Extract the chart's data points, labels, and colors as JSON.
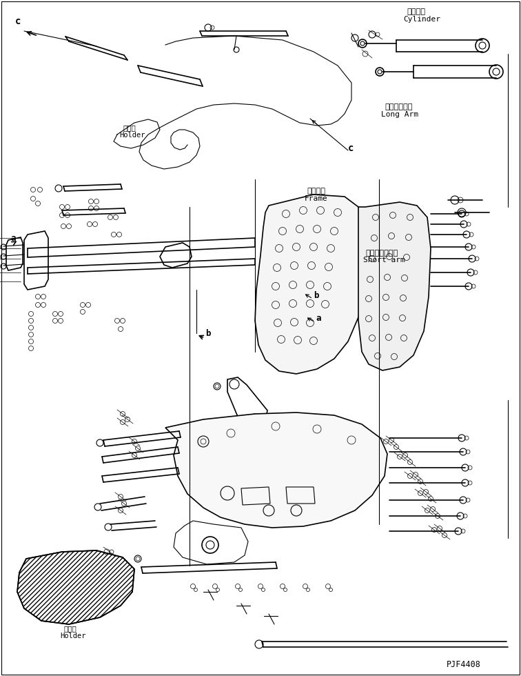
{
  "figure_code": "PJF4408",
  "background_color": "#ffffff",
  "line_color": "#000000",
  "labels": {
    "cylinder_jp": "シリンダ",
    "cylinder_en": "Cylinder",
    "long_arm_jp": "ロングアーム",
    "long_arm_en": "Long Arm",
    "frame_jp": "フレーム",
    "frame_en": "Frame",
    "holder_jp_top": "ホルダ",
    "holder_en_top": "Holder",
    "holder_jp_bottom": "ホルダ",
    "holder_en_bottom": "Holder",
    "short_arm_jp": "ショートアーム",
    "short_arm_en": "Short arm"
  },
  "figsize": [
    7.56,
    9.8
  ],
  "dpi": 100
}
